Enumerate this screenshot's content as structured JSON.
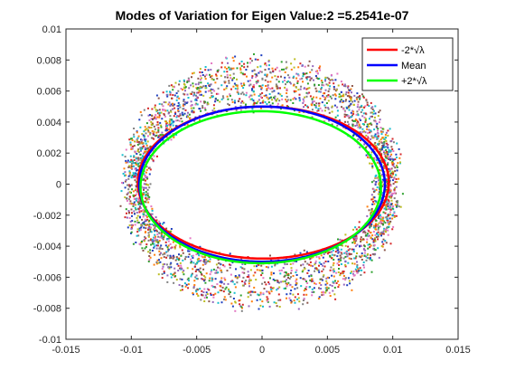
{
  "chart_data": {
    "type": "scatter",
    "title": "Modes of Variation for Eigen Value:2 =5.2541e-07",
    "xlabel": "",
    "ylabel": "",
    "xlim": [
      -0.015,
      0.015
    ],
    "ylim": [
      -0.01,
      0.01
    ],
    "x_ticks": [
      -0.015,
      -0.01,
      -0.005,
      0,
      0.005,
      0.01,
      0.015
    ],
    "x_tick_labels": [
      "-0.015",
      "-0.01",
      "-0.005",
      "0",
      "0.005",
      "0.01",
      "0.015"
    ],
    "y_ticks": [
      -0.01,
      -0.008,
      -0.006,
      -0.004,
      -0.002,
      0,
      0.002,
      0.004,
      0.006,
      0.008,
      0.01
    ],
    "y_tick_labels": [
      "-0.01",
      "-0.008",
      "-0.006",
      "-0.004",
      "-0.002",
      "0",
      "0.002",
      "0.004",
      "0.006",
      "0.008",
      "0.01"
    ],
    "grid": false,
    "legend_position": "top-right",
    "scatter_cloud": {
      "description_colors": [
        "#d62728",
        "#2ca02c",
        "#1f3fbf",
        "#9467bd",
        "#17becf",
        "#ff7f0e",
        "#8c564b",
        "#bcbd22",
        "#e377c2",
        "#7f7f7f"
      ],
      "center": [
        0.0,
        0.0
      ],
      "radius_x": [
        0.0094,
        0.0115
      ],
      "radius_y": [
        0.0045,
        0.0085
      ]
    },
    "series": [
      {
        "name": "-2*√λ",
        "color": "#ff0000",
        "center": [
          0.0001,
          0.0
        ],
        "rx": 0.0096,
        "ry": 0.0049,
        "shift_y": 0.0001
      },
      {
        "name": "Mean",
        "color": "#0000ff",
        "center": [
          0.0,
          0.0
        ],
        "rx": 0.0094,
        "ry": 0.005,
        "shift_y": 0.0
      },
      {
        "name": "+2*√λ",
        "color": "#00ff00",
        "center": [
          -0.0001,
          -0.0001
        ],
        "rx": 0.0092,
        "ry": 0.0049,
        "shift_y": -0.0001
      }
    ]
  }
}
